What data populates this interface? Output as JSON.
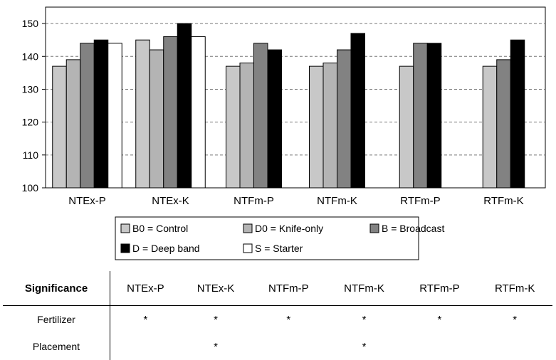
{
  "chart_data": {
    "type": "bar",
    "categories": [
      "NTEx-P",
      "NTEx-K",
      "NTFm-P",
      "NTFm-K",
      "RTFm-P",
      "RTFm-K"
    ],
    "series": [
      {
        "name": "B0 = Control",
        "values": [
          137,
          145,
          137,
          137,
          137,
          137
        ],
        "color": "#c8c8c8"
      },
      {
        "name": "D0 = Knife-only",
        "values": [
          139,
          142,
          138,
          138,
          null,
          null
        ],
        "color": "#b4b4b4"
      },
      {
        "name": "B = Broadcast",
        "values": [
          144,
          146,
          144,
          142,
          144,
          139
        ],
        "color": "#828282"
      },
      {
        "name": "D = Deep band",
        "values": [
          145,
          150,
          142,
          147,
          144,
          145
        ],
        "color": "#000000"
      },
      {
        "name": "S = Starter",
        "values": [
          144,
          146,
          null,
          null,
          null,
          null
        ],
        "color": "#ffffff"
      }
    ],
    "title": "",
    "xlabel": "",
    "ylabel": "",
    "ylim": [
      100,
      155
    ],
    "yticks": [
      100,
      110,
      120,
      130,
      140,
      150
    ],
    "grid": true,
    "legend_position": "bottom"
  },
  "table": {
    "header_label": "Significance",
    "columns": [
      "NTEx-P",
      "NTEx-K",
      "NTFm-P",
      "NTFm-K",
      "RTFm-P",
      "RTFm-K"
    ],
    "rows": [
      {
        "label": "Fertilizer",
        "cells": [
          "*",
          "*",
          "*",
          "*",
          "*",
          "*"
        ]
      },
      {
        "label": "Placement",
        "cells": [
          "",
          "*",
          "",
          "*",
          "",
          ""
        ]
      }
    ]
  }
}
